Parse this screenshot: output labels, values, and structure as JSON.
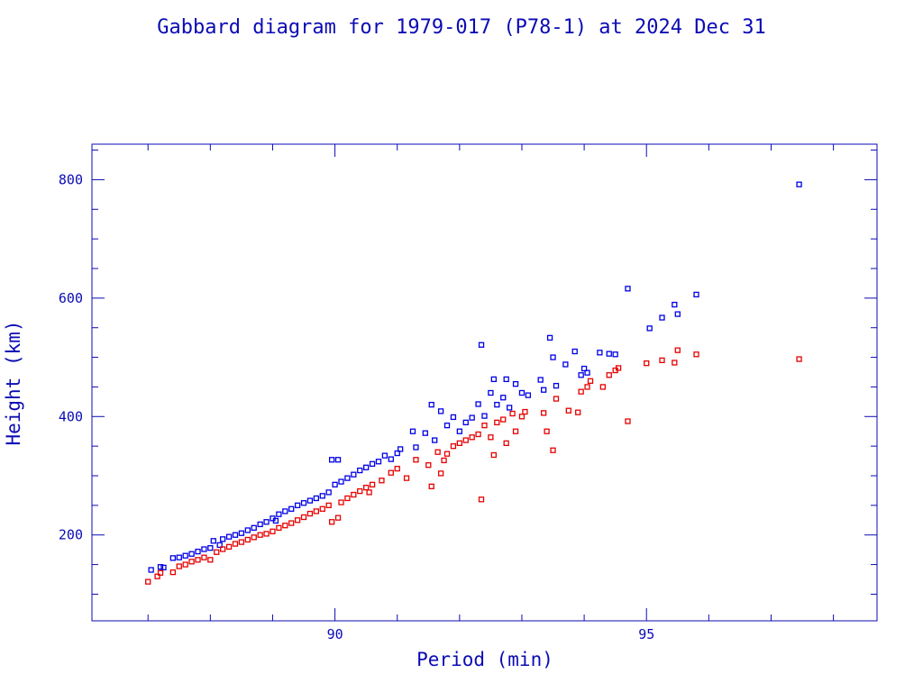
{
  "chart_data": {
    "type": "scatter",
    "title": "Gabbard diagram for 1979-017 (P78-1) at 2024 Dec 31",
    "xlabel": "Period (min)",
    "ylabel": "Height (km)",
    "xlim": [
      86.1,
      98.7
    ],
    "ylim": [
      55,
      860
    ],
    "x_ticks": [
      {
        "value": 90,
        "label": "90"
      },
      {
        "value": 95,
        "label": "95"
      }
    ],
    "y_ticks": [
      {
        "value": 200,
        "label": "200"
      },
      {
        "value": 400,
        "label": "400"
      },
      {
        "value": 600,
        "label": "600"
      },
      {
        "value": 800,
        "label": "800"
      }
    ],
    "grid": false,
    "colors": {
      "axis": "#0b0bb4",
      "series_1": "#0000e6",
      "series_2": "#e60000"
    },
    "series": [
      {
        "color": "#0000e6",
        "points": [
          [
            87.05,
            141
          ],
          [
            87.2,
            146
          ],
          [
            87.25,
            145
          ],
          [
            87.4,
            161
          ],
          [
            87.5,
            162
          ],
          [
            87.6,
            165
          ],
          [
            87.7,
            168
          ],
          [
            87.8,
            172
          ],
          [
            87.9,
            176
          ],
          [
            88.0,
            178
          ],
          [
            88.05,
            190
          ],
          [
            88.15,
            183
          ],
          [
            88.2,
            193
          ],
          [
            88.3,
            197
          ],
          [
            88.4,
            200
          ],
          [
            88.5,
            203
          ],
          [
            88.6,
            208
          ],
          [
            88.7,
            212
          ],
          [
            88.8,
            218
          ],
          [
            88.9,
            222
          ],
          [
            89.0,
            228
          ],
          [
            89.05,
            224
          ],
          [
            89.1,
            235
          ],
          [
            89.2,
            240
          ],
          [
            89.3,
            244
          ],
          [
            89.4,
            250
          ],
          [
            89.5,
            254
          ],
          [
            89.6,
            258
          ],
          [
            89.7,
            262
          ],
          [
            89.8,
            266
          ],
          [
            89.9,
            272
          ],
          [
            89.95,
            327
          ],
          [
            90.0,
            285
          ],
          [
            90.05,
            327
          ],
          [
            90.1,
            290
          ],
          [
            90.2,
            296
          ],
          [
            90.3,
            302
          ],
          [
            90.4,
            309
          ],
          [
            90.5,
            314
          ],
          [
            90.6,
            320
          ],
          [
            90.7,
            324
          ],
          [
            90.8,
            334
          ],
          [
            90.9,
            328
          ],
          [
            91.0,
            338
          ],
          [
            91.05,
            345
          ],
          [
            91.25,
            375
          ],
          [
            91.3,
            348
          ],
          [
            91.45,
            372
          ],
          [
            91.55,
            420
          ],
          [
            91.6,
            360
          ],
          [
            91.7,
            409
          ],
          [
            91.8,
            385
          ],
          [
            91.9,
            399
          ],
          [
            92.0,
            375
          ],
          [
            92.1,
            390
          ],
          [
            92.2,
            398
          ],
          [
            92.3,
            421
          ],
          [
            92.35,
            521
          ],
          [
            92.4,
            401
          ],
          [
            92.5,
            440
          ],
          [
            92.55,
            463
          ],
          [
            92.6,
            420
          ],
          [
            92.7,
            432
          ],
          [
            92.75,
            463
          ],
          [
            92.8,
            415
          ],
          [
            92.9,
            455
          ],
          [
            93.0,
            440
          ],
          [
            93.1,
            436
          ],
          [
            93.3,
            462
          ],
          [
            93.35,
            445
          ],
          [
            93.45,
            533
          ],
          [
            93.5,
            500
          ],
          [
            93.55,
            452
          ],
          [
            93.7,
            488
          ],
          [
            93.85,
            510
          ],
          [
            93.95,
            470
          ],
          [
            94.0,
            481
          ],
          [
            94.05,
            474
          ],
          [
            94.25,
            508
          ],
          [
            94.4,
            506
          ],
          [
            94.5,
            505
          ],
          [
            94.7,
            616
          ],
          [
            95.05,
            549
          ],
          [
            95.25,
            567
          ],
          [
            95.45,
            589
          ],
          [
            95.5,
            573
          ],
          [
            95.8,
            606
          ],
          [
            97.45,
            792
          ]
        ]
      },
      {
        "color": "#e60000",
        "points": [
          [
            87.0,
            121
          ],
          [
            87.15,
            130
          ],
          [
            87.2,
            136
          ],
          [
            87.4,
            137
          ],
          [
            87.5,
            147
          ],
          [
            87.6,
            150
          ],
          [
            87.7,
            155
          ],
          [
            87.8,
            158
          ],
          [
            87.9,
            162
          ],
          [
            88.0,
            158
          ],
          [
            88.1,
            171
          ],
          [
            88.2,
            176
          ],
          [
            88.3,
            180
          ],
          [
            88.4,
            185
          ],
          [
            88.5,
            188
          ],
          [
            88.6,
            192
          ],
          [
            88.7,
            196
          ],
          [
            88.8,
            200
          ],
          [
            88.9,
            202
          ],
          [
            89.0,
            206
          ],
          [
            89.1,
            212
          ],
          [
            89.2,
            216
          ],
          [
            89.3,
            220
          ],
          [
            89.4,
            225
          ],
          [
            89.5,
            230
          ],
          [
            89.6,
            236
          ],
          [
            89.7,
            240
          ],
          [
            89.8,
            244
          ],
          [
            89.9,
            250
          ],
          [
            89.95,
            222
          ],
          [
            90.05,
            229
          ],
          [
            90.1,
            255
          ],
          [
            90.2,
            262
          ],
          [
            90.3,
            268
          ],
          [
            90.4,
            274
          ],
          [
            90.5,
            280
          ],
          [
            90.55,
            272
          ],
          [
            90.6,
            285
          ],
          [
            90.75,
            292
          ],
          [
            90.9,
            305
          ],
          [
            91.0,
            312
          ],
          [
            91.15,
            296
          ],
          [
            91.3,
            327
          ],
          [
            91.5,
            318
          ],
          [
            91.55,
            282
          ],
          [
            91.65,
            340
          ],
          [
            91.7,
            304
          ],
          [
            91.75,
            326
          ],
          [
            91.8,
            337
          ],
          [
            91.9,
            350
          ],
          [
            92.0,
            355
          ],
          [
            92.1,
            360
          ],
          [
            92.2,
            365
          ],
          [
            92.3,
            370
          ],
          [
            92.35,
            260
          ],
          [
            92.4,
            385
          ],
          [
            92.5,
            365
          ],
          [
            92.55,
            335
          ],
          [
            92.6,
            390
          ],
          [
            92.7,
            395
          ],
          [
            92.75,
            355
          ],
          [
            92.85,
            405
          ],
          [
            92.9,
            375
          ],
          [
            93.0,
            400
          ],
          [
            93.05,
            408
          ],
          [
            93.35,
            406
          ],
          [
            93.4,
            375
          ],
          [
            93.5,
            343
          ],
          [
            93.55,
            430
          ],
          [
            93.75,
            410
          ],
          [
            93.9,
            407
          ],
          [
            93.95,
            442
          ],
          [
            94.05,
            450
          ],
          [
            94.1,
            460
          ],
          [
            94.3,
            450
          ],
          [
            94.4,
            470
          ],
          [
            94.5,
            478
          ],
          [
            94.55,
            482
          ],
          [
            94.7,
            392
          ],
          [
            95.0,
            490
          ],
          [
            95.25,
            495
          ],
          [
            95.45,
            491
          ],
          [
            95.5,
            512
          ],
          [
            95.8,
            505
          ],
          [
            97.45,
            497
          ]
        ]
      }
    ]
  }
}
